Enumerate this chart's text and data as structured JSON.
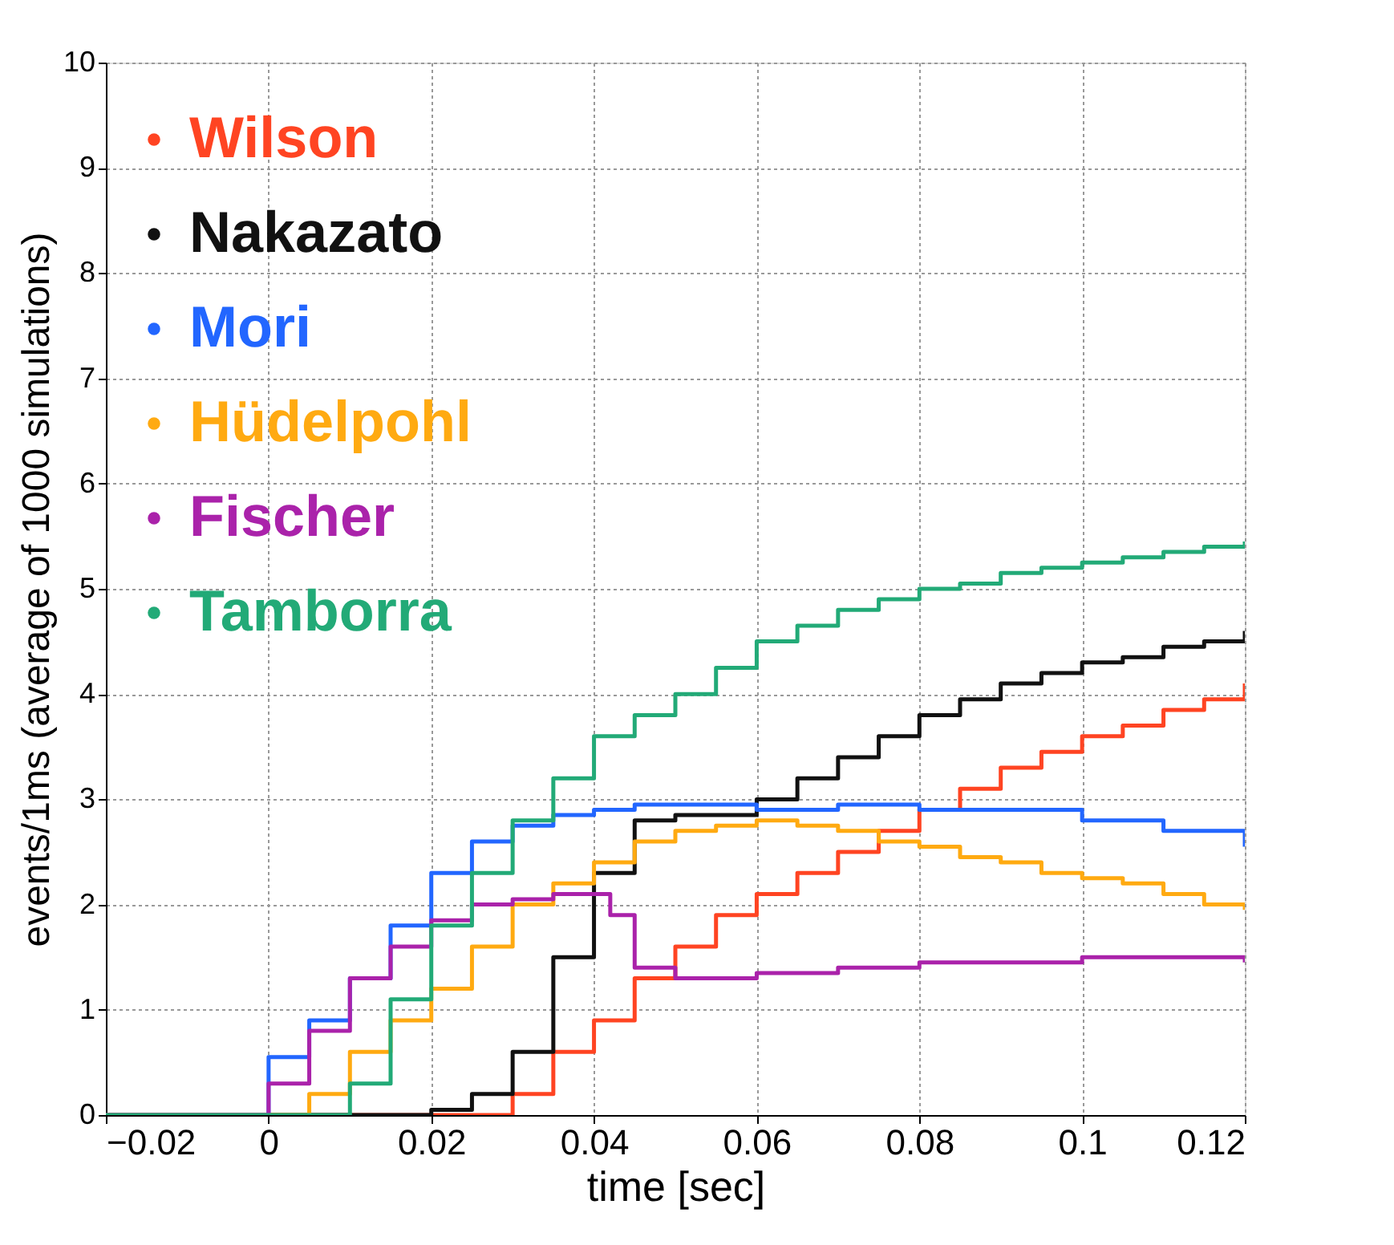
{
  "chart_data": {
    "type": "step",
    "xlabel": "time [sec]",
    "ylabel": "events/1ms (average of 1000 simulations)",
    "xlim": [
      -0.02,
      0.12
    ],
    "xticks": [
      -0.02,
      0,
      0.02,
      0.04,
      0.06,
      0.08,
      0.1,
      0.12
    ],
    "ylim": [
      0,
      10
    ],
    "yticks": [
      0,
      1,
      2,
      3,
      4,
      5,
      6,
      7,
      8,
      9,
      10
    ],
    "grid": true,
    "legend": "top left",
    "marker": "none",
    "line_style": "solid",
    "series": [
      {
        "name": "Wilson",
        "color": "#ff4422",
        "x": [
          -0.02,
          0.028,
          0.03,
          0.035,
          0.04,
          0.045,
          0.05,
          0.055,
          0.06,
          0.065,
          0.07,
          0.075,
          0.08,
          0.085,
          0.09,
          0.095,
          0.1,
          0.105,
          0.11,
          0.115,
          0.12
        ],
        "values": [
          0,
          0,
          0.2,
          0.6,
          0.9,
          1.3,
          1.6,
          1.9,
          2.1,
          2.3,
          2.5,
          2.7,
          2.9,
          3.1,
          3.3,
          3.45,
          3.6,
          3.7,
          3.85,
          3.95,
          4.1
        ]
      },
      {
        "name": "Nakazato",
        "color": "#111111",
        "x": [
          -0.02,
          0.018,
          0.02,
          0.025,
          0.03,
          0.035,
          0.04,
          0.045,
          0.05,
          0.055,
          0.06,
          0.065,
          0.07,
          0.075,
          0.08,
          0.085,
          0.09,
          0.095,
          0.1,
          0.105,
          0.11,
          0.115,
          0.12
        ],
        "values": [
          0,
          0,
          0.05,
          0.2,
          0.6,
          1.5,
          2.3,
          2.8,
          2.85,
          2.85,
          3.0,
          3.2,
          3.4,
          3.6,
          3.8,
          3.95,
          4.1,
          4.2,
          4.3,
          4.35,
          4.45,
          4.5,
          4.6
        ]
      },
      {
        "name": "Mori",
        "color": "#2266ff",
        "x": [
          -0.02,
          -0.005,
          0,
          0.005,
          0.01,
          0.015,
          0.02,
          0.025,
          0.03,
          0.035,
          0.04,
          0.045,
          0.05,
          0.06,
          0.07,
          0.08,
          0.09,
          0.1,
          0.11,
          0.12
        ],
        "values": [
          0,
          0,
          0.55,
          0.9,
          1.3,
          1.8,
          2.3,
          2.6,
          2.75,
          2.85,
          2.9,
          2.95,
          2.95,
          2.9,
          2.95,
          2.9,
          2.9,
          2.8,
          2.7,
          2.55
        ]
      },
      {
        "name": "Hüdelpohl",
        "color": "#ffaa11",
        "x": [
          -0.02,
          0.003,
          0.005,
          0.01,
          0.015,
          0.02,
          0.025,
          0.03,
          0.035,
          0.04,
          0.045,
          0.05,
          0.055,
          0.06,
          0.065,
          0.07,
          0.075,
          0.08,
          0.085,
          0.09,
          0.095,
          0.1,
          0.105,
          0.11,
          0.115,
          0.12
        ],
        "values": [
          0,
          0,
          0.2,
          0.6,
          0.9,
          1.2,
          1.6,
          2.0,
          2.2,
          2.4,
          2.6,
          2.7,
          2.75,
          2.8,
          2.75,
          2.7,
          2.6,
          2.55,
          2.45,
          2.4,
          2.3,
          2.25,
          2.2,
          2.1,
          2.0,
          1.95
        ]
      },
      {
        "name": "Fischer",
        "color": "#aa22aa",
        "x": [
          -0.02,
          0,
          0.005,
          0.01,
          0.015,
          0.02,
          0.025,
          0.03,
          0.035,
          0.04,
          0.042,
          0.045,
          0.05,
          0.06,
          0.07,
          0.08,
          0.09,
          0.1,
          0.11,
          0.12
        ],
        "values": [
          0,
          0.3,
          0.8,
          1.3,
          1.6,
          1.85,
          2.0,
          2.05,
          2.1,
          2.1,
          1.9,
          1.4,
          1.3,
          1.35,
          1.4,
          1.45,
          1.45,
          1.5,
          1.5,
          1.45
        ]
      },
      {
        "name": "Tamborra",
        "color": "#22aa77",
        "x": [
          -0.02,
          0.008,
          0.01,
          0.015,
          0.02,
          0.025,
          0.03,
          0.035,
          0.04,
          0.045,
          0.05,
          0.055,
          0.06,
          0.065,
          0.07,
          0.075,
          0.08,
          0.085,
          0.09,
          0.095,
          0.1,
          0.105,
          0.11,
          0.115,
          0.12
        ],
        "values": [
          0,
          0,
          0.3,
          1.1,
          1.8,
          2.3,
          2.8,
          3.2,
          3.6,
          3.8,
          4.0,
          4.25,
          4.5,
          4.65,
          4.8,
          4.9,
          5.0,
          5.05,
          5.15,
          5.2,
          5.25,
          5.3,
          5.35,
          5.4,
          5.45
        ]
      }
    ]
  }
}
